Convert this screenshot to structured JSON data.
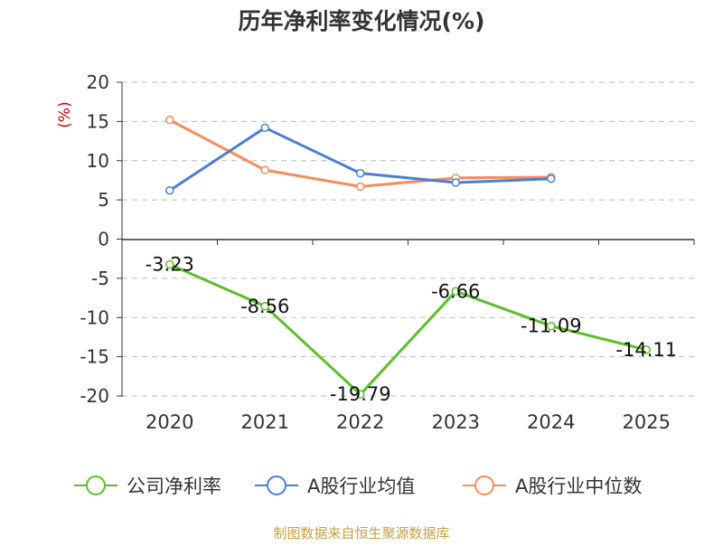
{
  "title": "历年净利率变化情况(%)",
  "source": "制图数据来自恒生聚源数据库",
  "colors": {
    "title": "#333333",
    "axis_text": "#333333",
    "ylabel": "#cc0000",
    "grid": "#bbbbbb",
    "source": "#c8a040"
  },
  "chart_data": {
    "type": "line",
    "title": "历年净利率变化情况(%)",
    "ylabel": "(%)",
    "xlabel": "",
    "categories": [
      "2020",
      "2021",
      "2022",
      "2023",
      "2024",
      "2025"
    ],
    "ylim": [
      -20,
      20
    ],
    "yticks": [
      20,
      15,
      10,
      5,
      0,
      -5,
      -10,
      -15,
      -20
    ],
    "ytick_labels": [
      "20",
      "15",
      "10",
      "5",
      "0",
      "-5",
      "-10",
      "-15",
      "-20"
    ],
    "grid": true,
    "legend_position": "bottom",
    "series": [
      {
        "name": "公司净利率",
        "color": "#5cbf2a",
        "values": [
          -3.23,
          -8.56,
          -19.79,
          -6.66,
          -11.09,
          -14.11
        ],
        "labels": [
          "-3.23",
          "-8.56",
          "-19.79",
          "-6.66",
          "-11.09",
          "-14.11"
        ],
        "show_labels": true
      },
      {
        "name": "A股行业均值",
        "color": "#4a7fd6",
        "values": [
          6.2,
          14.2,
          8.4,
          7.2,
          7.7,
          null
        ],
        "show_labels": false
      },
      {
        "name": "A股行业中位数",
        "color": "#f58c5a",
        "values": [
          15.2,
          8.8,
          6.7,
          7.8,
          7.9,
          null
        ],
        "show_labels": false
      }
    ]
  }
}
